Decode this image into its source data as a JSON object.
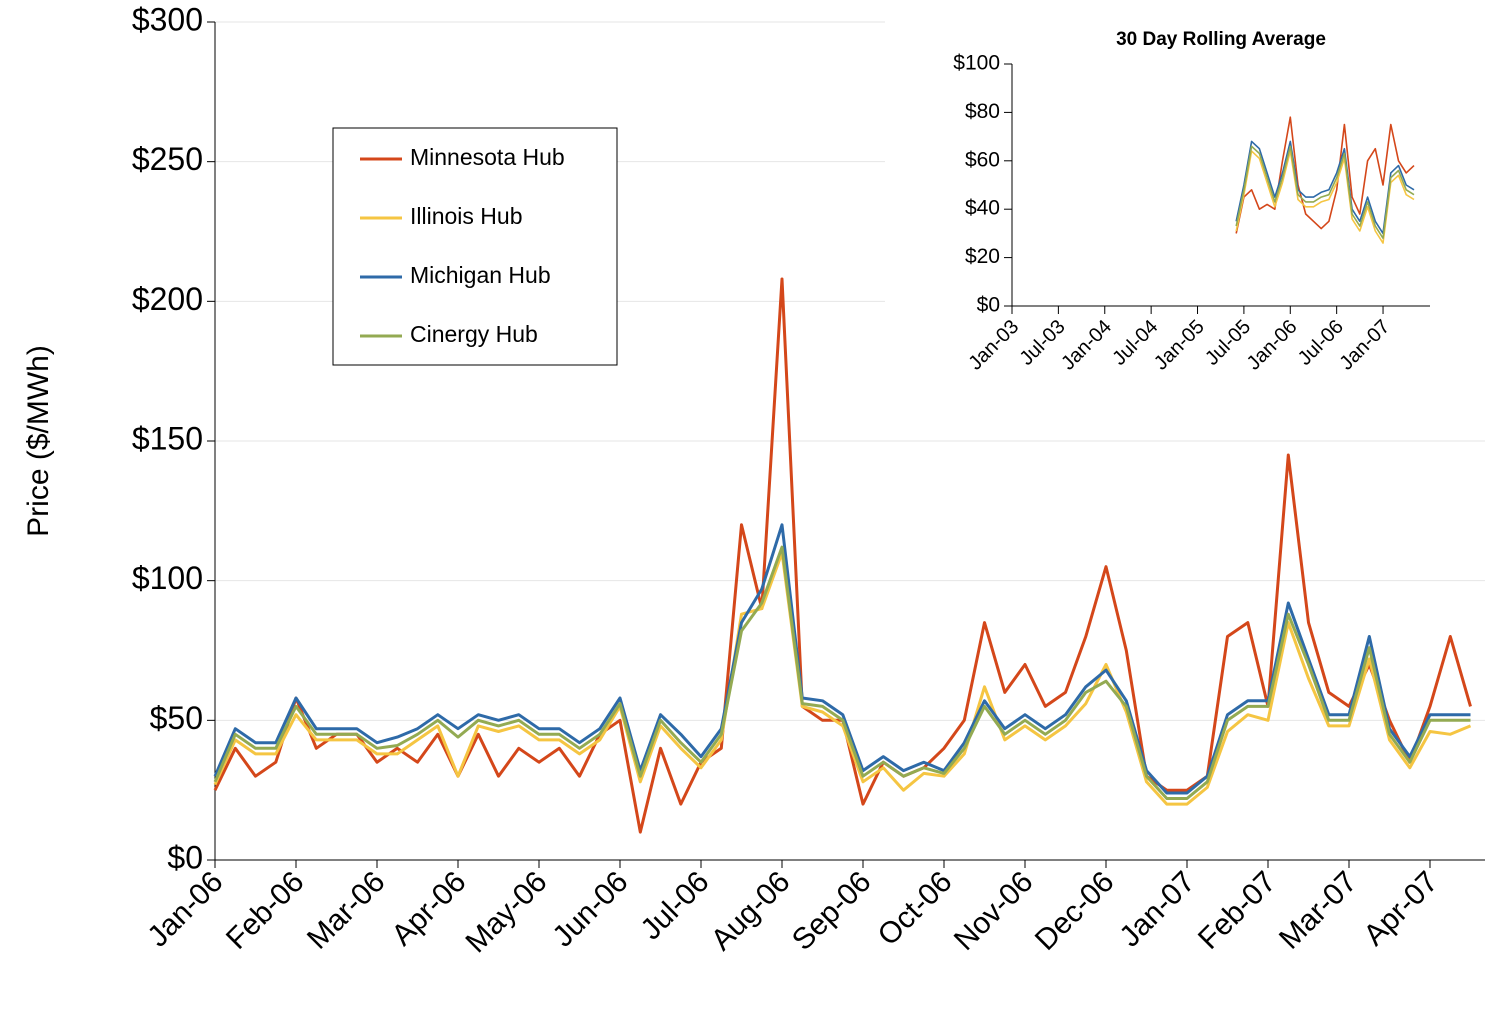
{
  "chart_data": [
    {
      "type": "line",
      "y_label": "Price ($/MWh)",
      "categories": [
        "Jan-06",
        null,
        null,
        null,
        "Feb-06",
        null,
        null,
        null,
        "Mar-06",
        null,
        null,
        null,
        "Apr-06",
        null,
        null,
        null,
        "May-06",
        null,
        null,
        null,
        "Jun-06",
        null,
        null,
        null,
        "Jul-06",
        null,
        null,
        null,
        "Aug-06",
        null,
        null,
        null,
        "Sep-06",
        null,
        null,
        null,
        "Oct-06",
        null,
        null,
        null,
        "Nov-06",
        null,
        null,
        null,
        "Dec-06",
        null,
        null,
        null,
        "Jan-07",
        null,
        null,
        null,
        "Feb-07",
        null,
        null,
        null,
        "Mar-07",
        null,
        null,
        null,
        "Apr-07",
        null,
        null
      ],
      "series": [
        {
          "name": "Minnesota Hub",
          "color": "#d4471a",
          "values": [
            25,
            40,
            30,
            35,
            58,
            40,
            45,
            45,
            35,
            40,
            35,
            45,
            30,
            45,
            30,
            40,
            35,
            40,
            30,
            45,
            50,
            10,
            40,
            20,
            35,
            40,
            120,
            90,
            208,
            55,
            50,
            50,
            20,
            35,
            30,
            33,
            40,
            50,
            85,
            60,
            70,
            55,
            60,
            80,
            105,
            75,
            30,
            25,
            25,
            30,
            80,
            85,
            55,
            145,
            85,
            60,
            55,
            70,
            50,
            35,
            55,
            80,
            55
          ]
        },
        {
          "name": "Illinois Hub",
          "color": "#f5c542",
          "values": [
            27,
            43,
            38,
            38,
            52,
            43,
            43,
            43,
            38,
            38,
            43,
            48,
            30,
            48,
            46,
            48,
            43,
            43,
            38,
            43,
            55,
            28,
            48,
            40,
            33,
            43,
            88,
            90,
            110,
            55,
            53,
            48,
            28,
            33,
            25,
            31,
            30,
            38,
            62,
            43,
            48,
            43,
            48,
            56,
            70,
            53,
            28,
            20,
            20,
            26,
            46,
            52,
            50,
            85,
            65,
            48,
            48,
            72,
            43,
            33,
            46,
            45,
            48
          ]
        },
        {
          "name": "Michigan Hub",
          "color": "#2e6aa8",
          "values": [
            30,
            47,
            42,
            42,
            58,
            47,
            47,
            47,
            42,
            44,
            47,
            52,
            47,
            52,
            50,
            52,
            47,
            47,
            42,
            47,
            58,
            32,
            52,
            45,
            37,
            47,
            85,
            97,
            120,
            58,
            57,
            52,
            32,
            37,
            32,
            35,
            32,
            42,
            57,
            47,
            52,
            47,
            52,
            62,
            68,
            57,
            32,
            24,
            24,
            30,
            52,
            57,
            57,
            92,
            72,
            52,
            52,
            80,
            47,
            37,
            52,
            52,
            52
          ]
        },
        {
          "name": "Cinergy Hub",
          "color": "#93aa52",
          "values": [
            28,
            45,
            40,
            40,
            55,
            45,
            45,
            45,
            40,
            41,
            45,
            50,
            44,
            50,
            48,
            50,
            45,
            45,
            40,
            45,
            56,
            30,
            50,
            42,
            35,
            45,
            82,
            92,
            112,
            56,
            55,
            50,
            30,
            35,
            30,
            33,
            31,
            40,
            55,
            45,
            50,
            45,
            50,
            60,
            64,
            55,
            30,
            22,
            22,
            28,
            50,
            55,
            55,
            88,
            70,
            50,
            50,
            76,
            45,
            35,
            50,
            50,
            50
          ]
        }
      ],
      "ylim": [
        0,
        300
      ],
      "yticks": [
        {
          "value": 0,
          "label": "$0"
        },
        {
          "value": 50,
          "label": "$50"
        },
        {
          "value": 100,
          "label": "$100"
        },
        {
          "value": 150,
          "label": "$150"
        },
        {
          "value": 200,
          "label": "$200"
        },
        {
          "value": 250,
          "label": "$250"
        },
        {
          "value": 300,
          "label": "$300"
        }
      ],
      "grid": true,
      "legend": "upper left"
    },
    {
      "type": "line",
      "title": "30 Day Rolling Average",
      "categories": [
        "Jan-03",
        null,
        null,
        null,
        null,
        null,
        "Jul-03",
        null,
        null,
        null,
        null,
        null,
        "Jan-04",
        null,
        null,
        null,
        null,
        null,
        "Jul-04",
        null,
        null,
        null,
        null,
        null,
        "Jan-05",
        null,
        null,
        null,
        null,
        null,
        "Jul-05",
        null,
        null,
        null,
        null,
        null,
        "Jan-06",
        null,
        null,
        null,
        null,
        null,
        "Jul-06",
        null,
        null,
        null,
        null,
        null,
        "Jan-07",
        null,
        null,
        null,
        null
      ],
      "series": [
        {
          "name": "Minnesota Hub",
          "color": "#d4471a",
          "values": [
            null,
            null,
            null,
            null,
            null,
            null,
            null,
            null,
            null,
            null,
            null,
            null,
            null,
            null,
            null,
            null,
            null,
            null,
            null,
            null,
            null,
            null,
            null,
            null,
            null,
            null,
            null,
            null,
            null,
            30,
            45,
            48,
            40,
            42,
            40,
            60,
            78,
            50,
            38,
            35,
            32,
            35,
            48,
            75,
            45,
            38,
            60,
            65,
            50,
            75,
            60,
            55,
            58
          ]
        },
        {
          "name": "Illinois Hub",
          "color": "#f5c542",
          "values": [
            null,
            null,
            null,
            null,
            null,
            null,
            null,
            null,
            null,
            null,
            null,
            null,
            null,
            null,
            null,
            null,
            null,
            null,
            null,
            null,
            null,
            null,
            null,
            null,
            null,
            null,
            null,
            null,
            null,
            31,
            46,
            64,
            61,
            51,
            41,
            51,
            64,
            44,
            41,
            41,
            43,
            44,
            51,
            61,
            36,
            31,
            41,
            31,
            26,
            51,
            54,
            46,
            44
          ]
        },
        {
          "name": "Michigan Hub",
          "color": "#2e6aa8",
          "values": [
            null,
            null,
            null,
            null,
            null,
            null,
            null,
            null,
            null,
            null,
            null,
            null,
            null,
            null,
            null,
            null,
            null,
            null,
            null,
            null,
            null,
            null,
            null,
            null,
            null,
            null,
            null,
            null,
            null,
            35,
            50,
            68,
            65,
            55,
            45,
            55,
            68,
            48,
            45,
            45,
            47,
            48,
            55,
            65,
            40,
            35,
            45,
            35,
            30,
            55,
            58,
            50,
            48
          ]
        },
        {
          "name": "Cinergy Hub",
          "color": "#93aa52",
          "values": [
            null,
            null,
            null,
            null,
            null,
            null,
            null,
            null,
            null,
            null,
            null,
            null,
            null,
            null,
            null,
            null,
            null,
            null,
            null,
            null,
            null,
            null,
            null,
            null,
            null,
            null,
            null,
            null,
            null,
            33,
            48,
            66,
            63,
            53,
            43,
            53,
            66,
            46,
            43,
            43,
            45,
            46,
            53,
            63,
            38,
            33,
            43,
            33,
            28,
            53,
            56,
            48,
            46
          ]
        }
      ],
      "ylim": [
        0,
        100
      ],
      "yticks": [
        {
          "value": 0,
          "label": "$0"
        },
        {
          "value": 20,
          "label": "$20"
        },
        {
          "value": 40,
          "label": "$40"
        },
        {
          "value": 60,
          "label": "$60"
        },
        {
          "value": 80,
          "label": "$80"
        },
        {
          "value": 100,
          "label": "$100"
        }
      ],
      "grid": false
    }
  ]
}
